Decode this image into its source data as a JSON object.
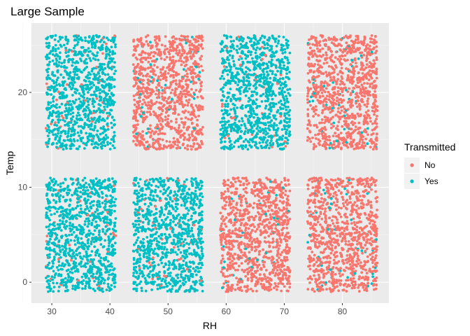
{
  "chart_data": {
    "type": "scatter",
    "title": "Large Sample",
    "xlabel": "RH",
    "ylabel": "Temp",
    "xlim": [
      26.5,
      88
    ],
    "ylim": [
      -2.2,
      27.3
    ],
    "x_ticks": [
      30,
      40,
      50,
      60,
      70,
      80
    ],
    "y_ticks": [
      0,
      10,
      20
    ],
    "x_minor_ticks": [
      25,
      35,
      45,
      55,
      65,
      75,
      85
    ],
    "y_minor_ticks": [
      5,
      15,
      25
    ],
    "grid": true,
    "legend": {
      "title": "Transmitted",
      "position": "right",
      "entries": [
        {
          "label": "No",
          "color": "#F8766D"
        },
        {
          "label": "Yes",
          "color": "#00BFC4"
        }
      ]
    },
    "point_count_per_block": 1000,
    "blocks": [
      {
        "rh": [
          29,
          41
        ],
        "temp": [
          -1,
          11
        ],
        "yes_share": 0.96
      },
      {
        "rh": [
          44,
          56
        ],
        "temp": [
          -1,
          11
        ],
        "yes_share": 0.96
      },
      {
        "rh": [
          59,
          71
        ],
        "temp": [
          -1,
          11
        ],
        "yes_share": 0.04
      },
      {
        "rh": [
          74,
          86
        ],
        "temp": [
          -1,
          11
        ],
        "yes_share": 0.04
      },
      {
        "rh": [
          29,
          41
        ],
        "temp": [
          14,
          26
        ],
        "yes_share": 0.96
      },
      {
        "rh": [
          44,
          56
        ],
        "temp": [
          14,
          26
        ],
        "yes_share": 0.04
      },
      {
        "rh": [
          59,
          71
        ],
        "temp": [
          14,
          26
        ],
        "yes_share": 0.96
      },
      {
        "rh": [
          74,
          86
        ],
        "temp": [
          14,
          26
        ],
        "yes_share": 0.04
      }
    ]
  },
  "colors": {
    "panel_bg": "#EBEBEB",
    "grid_major": "#FFFFFF",
    "no": "#F8766D",
    "yes": "#00BFC4"
  }
}
